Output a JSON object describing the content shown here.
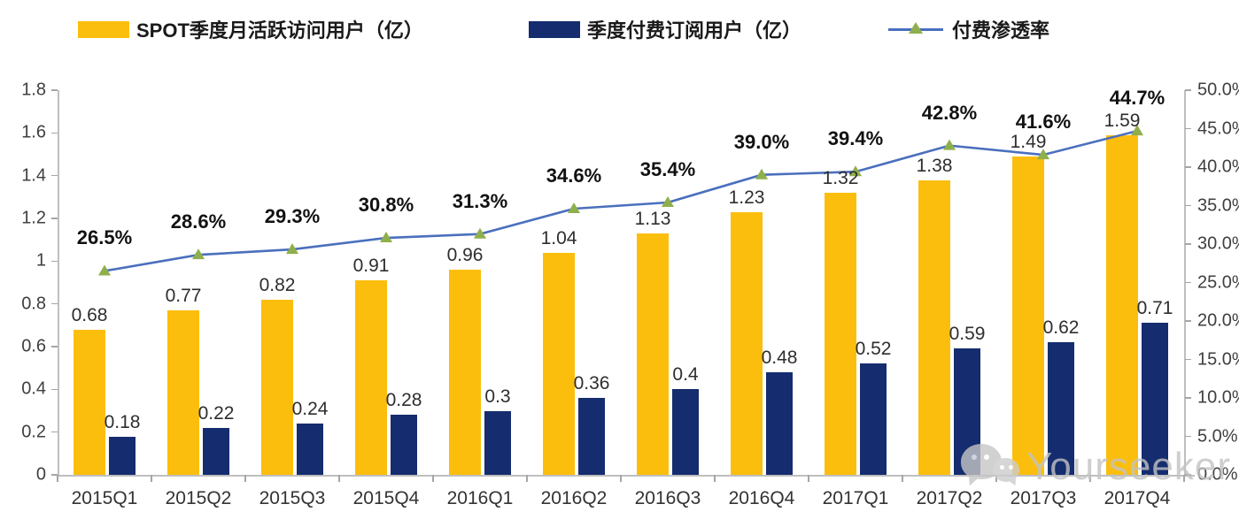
{
  "watermark": {
    "text": "Yourseeker",
    "icon": "wechat-icon"
  },
  "chart_data": {
    "type": "bar",
    "subtype": "grouped bars with line overlay (dual axis combo)",
    "title": "",
    "categories": [
      "2015Q1",
      "2015Q2",
      "2015Q3",
      "2015Q4",
      "2016Q1",
      "2016Q2",
      "2016Q3",
      "2016Q4",
      "2017Q1",
      "2017Q2",
      "2017Q3",
      "2017Q4"
    ],
    "series": [
      {
        "name": "SPOT季度月活跃访问用户（亿）",
        "type": "bar",
        "axis": "left",
        "color": "#fcbe0d",
        "values": [
          0.68,
          0.77,
          0.82,
          0.91,
          0.96,
          1.04,
          1.13,
          1.23,
          1.32,
          1.38,
          1.49,
          1.59
        ],
        "labels": [
          "0.68",
          "0.77",
          "0.82",
          "0.91",
          "0.96",
          "1.04",
          "1.13",
          "1.23",
          "1.32",
          "1.38",
          "1.49",
          "1.59"
        ]
      },
      {
        "name": "季度付费订阅用户（亿）",
        "type": "bar",
        "axis": "left",
        "color": "#152c6e",
        "values": [
          0.18,
          0.22,
          0.24,
          0.28,
          0.3,
          0.36,
          0.4,
          0.48,
          0.52,
          0.59,
          0.62,
          0.71
        ],
        "labels": [
          "0.18",
          "0.22",
          "0.24",
          "0.28",
          "0.3",
          "0.36",
          "0.4",
          "0.48",
          "0.52",
          "0.59",
          "0.62",
          "0.71"
        ]
      },
      {
        "name": "付费渗透率",
        "type": "line",
        "axis": "right",
        "color": "#4a6fbd",
        "marker": "triangle",
        "marker_color": "#8faf4c",
        "values": [
          26.5,
          28.6,
          29.3,
          30.8,
          31.3,
          34.6,
          35.4,
          39.0,
          39.4,
          42.8,
          41.6,
          44.7
        ],
        "labels": [
          "26.5%",
          "28.6%",
          "29.3%",
          "30.8%",
          "31.3%",
          "34.6%",
          "35.4%",
          "39.0%",
          "39.4%",
          "42.8%",
          "41.6%",
          "44.7%"
        ]
      }
    ],
    "left_axis": {
      "min": 0,
      "max": 1.8,
      "step": 0.2,
      "tick_labels": [
        "1.8",
        "1.6",
        "1.4",
        "1.2",
        "1",
        "0.8",
        "0.6",
        "0.4",
        "0.2",
        "0"
      ]
    },
    "right_axis": {
      "min": 0,
      "max": 50,
      "step": 5,
      "tick_labels": [
        "50.0%",
        "45.0%",
        "40.0%",
        "35.0%",
        "30.0%",
        "25.0%",
        "20.0%",
        "15.0%",
        "10.0%",
        "5.0%",
        "0.0%"
      ]
    },
    "legend_position": "top",
    "grid": false,
    "background": "#ffffff"
  }
}
